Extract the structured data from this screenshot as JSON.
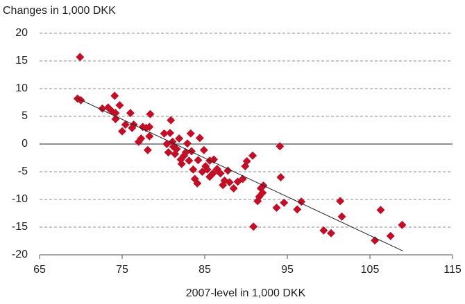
{
  "chart_data": {
    "type": "scatter",
    "y_label": "Changes in 1,000 DKK",
    "x_label": "2007-level in 1,000 DKK",
    "color": "#c00f26",
    "line_color": "#222222",
    "grid": true,
    "xlim": [
      65,
      115
    ],
    "xticks": [
      65,
      75,
      85,
      95,
      105,
      115
    ],
    "ylim": [
      -20,
      20
    ],
    "yticks": [
      -20,
      -15,
      -10,
      -5,
      0,
      5,
      10,
      15,
      20
    ],
    "x": [
      69.9,
      69.6,
      70.0,
      72.6,
      73.3,
      73.7,
      74.1,
      74.2,
      74.7,
      74.2,
      75.0,
      75.4,
      76.0,
      76.2,
      76.4,
      77.0,
      77.3,
      77.5,
      77.9,
      78.1,
      78.4,
      78.3,
      78.3,
      80.1,
      80.4,
      80.6,
      80.8,
      80.9,
      81.1,
      81.2,
      81.4,
      81.6,
      81.9,
      82.1,
      82.2,
      82.5,
      82.7,
      82.9,
      83.1,
      83.3,
      83.4,
      83.6,
      83.8,
      84.1,
      84.2,
      84.4,
      84.9,
      84.7,
      85.1,
      85.3,
      85.6,
      85.6,
      86.0,
      86.1,
      86.5,
      86.9,
      87.2,
      87.4,
      87.8,
      88.0,
      88.5,
      89.0,
      89.6,
      89.9,
      90.1,
      90.8,
      90.9,
      91.4,
      91.6,
      91.8,
      92.0,
      92.1,
      93.7,
      94.1,
      94.2,
      94.6,
      96.2,
      96.7,
      99.4,
      100.3,
      101.4,
      101.6,
      105.6,
      106.3,
      107.5,
      108.9
    ],
    "values": [
      15.7,
      8.2,
      7.9,
      6.4,
      6.6,
      6.0,
      8.7,
      5.6,
      7.0,
      4.5,
      2.3,
      3.5,
      5.6,
      2.9,
      3.5,
      0.4,
      1.0,
      3.1,
      2.9,
      -1.1,
      5.4,
      1.4,
      3.1,
      1.9,
      0.0,
      -1.5,
      2.0,
      4.3,
      0.4,
      -0.5,
      -1.8,
      -0.9,
      1.0,
      -2.8,
      -3.6,
      -2.1,
      -1.5,
      0.1,
      -3.0,
      1.9,
      -1.3,
      -4.6,
      -6.3,
      -7.1,
      -2.9,
      1.1,
      -1.1,
      -5.0,
      -4.0,
      -4.6,
      -5.9,
      -3.0,
      -5.3,
      -2.8,
      -4.5,
      -5.3,
      -7.4,
      -6.6,
      -4.8,
      -6.9,
      -8.0,
      -6.8,
      -6.3,
      -4.0,
      -3.1,
      -2.1,
      -14.9,
      -10.3,
      -9.5,
      -8.0,
      -8.8,
      -7.5,
      -11.5,
      -0.4,
      -6.0,
      -10.6,
      -11.8,
      -10.4,
      -15.6,
      -16.1,
      -10.3,
      -13.1,
      -17.4,
      -11.9,
      -16.6,
      -14.6
    ],
    "trendline": {
      "x": [
        69.5,
        109.0
      ],
      "y": [
        8.3,
        -19.3
      ]
    }
  }
}
